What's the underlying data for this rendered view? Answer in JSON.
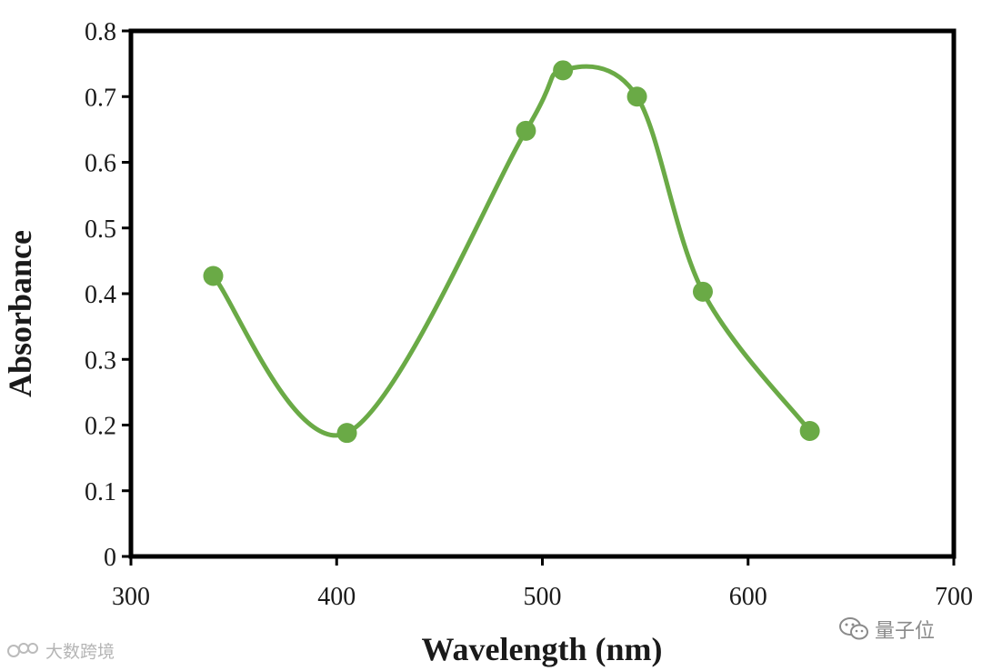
{
  "chart_data": {
    "type": "line",
    "title": "",
    "xlabel": "Wavelength (nm)",
    "ylabel": "Absorbance",
    "xlim": [
      300,
      700
    ],
    "ylim": [
      0,
      0.8
    ],
    "x_ticks": [
      300,
      400,
      500,
      600,
      700
    ],
    "y_ticks": [
      "0",
      "0.1",
      "0.2",
      "0.3",
      "0.4",
      "0.5",
      "0.6",
      "0.7",
      "0.8"
    ],
    "grid": false,
    "legend": "none",
    "smooth": true,
    "series": [
      {
        "color": "#6aaa46",
        "x": [
          340,
          405,
          492,
          510,
          546,
          578,
          630
        ],
        "y": [
          0.427,
          0.188,
          0.648,
          0.74,
          0.7,
          0.403,
          0.191
        ]
      }
    ]
  },
  "watermarks": {
    "left": "大数跨境",
    "right": "量子位"
  }
}
